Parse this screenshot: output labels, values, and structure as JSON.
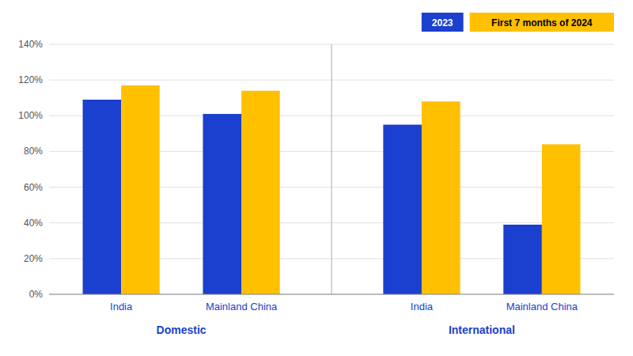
{
  "chart_data": {
    "type": "bar",
    "categories": [
      "India",
      "Mainland China",
      "India",
      "Mainland China"
    ],
    "annotations": [
      "Domestic",
      "International"
    ],
    "series": [
      {
        "name": "2023",
        "color": "#1B3FCE",
        "values": [
          109,
          101,
          95,
          39
        ]
      },
      {
        "name": "First 7 months of 2024",
        "color": "#FFC000",
        "values": [
          117,
          114,
          108,
          84
        ]
      }
    ],
    "ylim": [
      0,
      140
    ],
    "yticks": [
      {
        "value": 0,
        "label": "0%"
      },
      {
        "value": 20,
        "label": "20%"
      },
      {
        "value": 40,
        "label": "40%"
      },
      {
        "value": 60,
        "label": "60%"
      },
      {
        "value": 80,
        "label": "80%"
      },
      {
        "value": 100,
        "label": "100%"
      },
      {
        "value": 120,
        "label": "120%"
      },
      {
        "value": 140,
        "label": "140%"
      }
    ],
    "grid": true,
    "legend": "upper right"
  }
}
